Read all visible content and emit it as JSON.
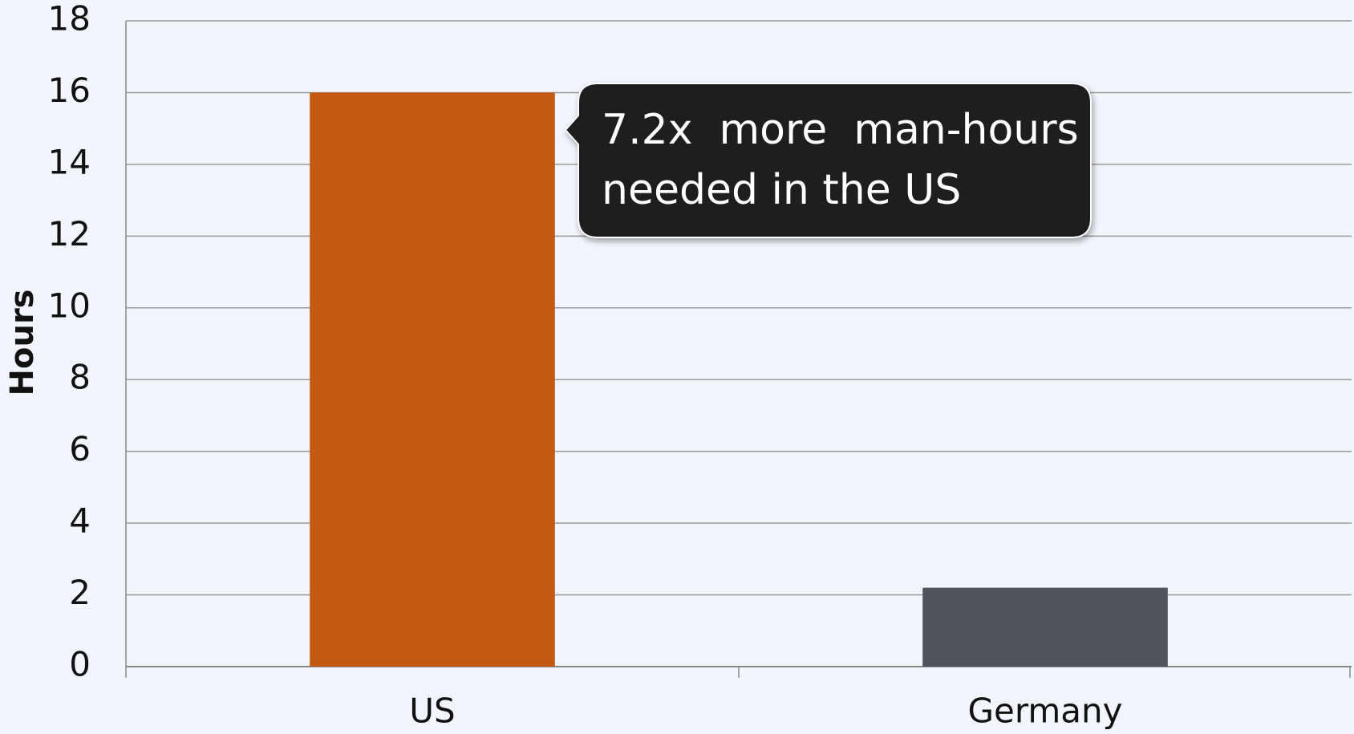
{
  "chart_data": {
    "type": "bar",
    "y_label": "Hours",
    "categories": [
      "US",
      "Germany"
    ],
    "values": [
      16,
      2.2
    ],
    "colors": [
      "#c35913",
      "#50545c"
    ],
    "ylim": [
      0,
      18
    ],
    "yticks": [
      0,
      2,
      4,
      6,
      8,
      10,
      12,
      14,
      16,
      18
    ],
    "grid": true,
    "annotation": [
      "7.2x  more  man-hours",
      "needed in the US"
    ]
  }
}
